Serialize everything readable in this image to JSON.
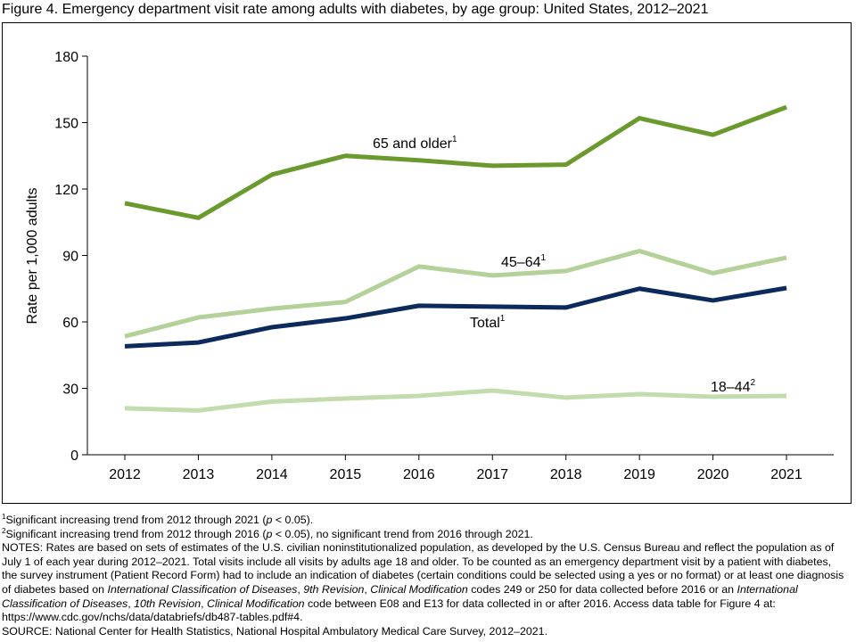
{
  "chart_data": {
    "type": "line",
    "title": "Figure 4. Emergency department visit rate among adults with diabetes, by age group: United States, 2012–2021",
    "xlabel": "",
    "ylabel": "Rate per 1,000 adults",
    "ylim": [
      0,
      180
    ],
    "yticks": [
      "0",
      "30",
      "60",
      "90",
      "120",
      "150",
      "180"
    ],
    "x": [
      "2012",
      "2013",
      "2014",
      "2015",
      "2016",
      "2017",
      "2018",
      "2019",
      "2020",
      "2021"
    ],
    "grid": false,
    "series": [
      {
        "name": "65 and older",
        "sup": "1",
        "color": "#6a9a2e",
        "values": [
          113.6,
          107,
          126.5,
          135,
          133,
          130.5,
          131,
          152,
          144.5,
          157
        ]
      },
      {
        "name": "45–64",
        "sup": "1",
        "color": "#b3d199",
        "values": [
          53.5,
          62,
          66,
          69,
          85,
          81,
          83,
          92,
          82,
          89
        ]
      },
      {
        "name": "Total",
        "sup": "1",
        "color": "#0d2a5c",
        "values": [
          49,
          50.7,
          57.6,
          61.6,
          67.3,
          66.9,
          66.5,
          75,
          69.7,
          75.3
        ]
      },
      {
        "name": "18–44",
        "sup": "2",
        "color": "#c3dcae",
        "values": [
          21,
          20,
          24,
          25.4,
          26.6,
          29,
          25.8,
          27.4,
          26.2,
          26.6
        ]
      }
    ]
  },
  "footnotes": [
    [
      {
        "t": "1",
        "sup": true
      },
      {
        "t": "Significant increasing trend from 2012 through 2021 ("
      },
      {
        "t": "p",
        "i": true
      },
      {
        "t": " < 0.05)."
      }
    ],
    [
      {
        "t": "2",
        "sup": true
      },
      {
        "t": "Significant increasing trend from 2012 through 2016 ("
      },
      {
        "t": "p",
        "i": true
      },
      {
        "t": " < 0.05), no significant trend from 2016 through 2021."
      }
    ],
    [
      {
        "t": "NOTES: Rates are based on sets of estimates of the U.S. civilian noninstitutionalized population, as developed by the U.S. Census Bureau and reflect the population as of July 1 of each year during 2012–2021. Total visits include all visits by adults age 18 and older. To be counted as an emergency department visit by a patient with diabetes, the survey instrument (Patient Record Form) had to include an indication of diabetes (certain conditions could be selected using a yes or no format) or at least one diagnosis of diabetes based on "
      },
      {
        "t": "International Classification of Diseases",
        "i": true
      },
      {
        "t": ", "
      },
      {
        "t": "9th Revision",
        "i": true
      },
      {
        "t": ", "
      },
      {
        "t": "Clinical Modification",
        "i": true
      },
      {
        "t": " codes 249 or 250 for data collected before 2016 or an "
      },
      {
        "t": "International Classification of Diseases",
        "i": true
      },
      {
        "t": ", "
      },
      {
        "t": "10th Revision",
        "i": true
      },
      {
        "t": ", "
      },
      {
        "t": "Clinical Modification",
        "i": true
      },
      {
        "t": " code between E08 and E13 for data collected in or after 2016. Access data table for Figure 4 at: https://www.cdc.gov/nchs/data/databriefs/db487-tables.pdf#4."
      }
    ],
    [
      {
        "t": "SOURCE: National Center for Health Statistics, National Hospital Ambulatory Medical Care Survey, 2012–2021."
      }
    ]
  ]
}
